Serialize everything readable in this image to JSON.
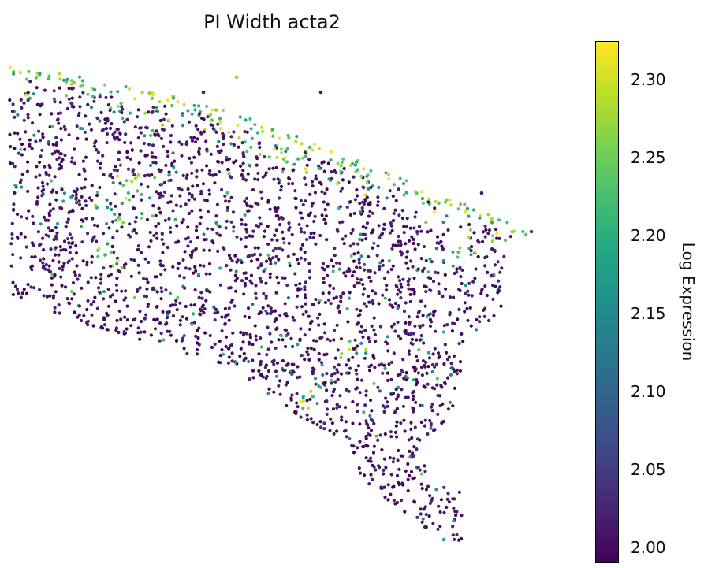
{
  "chart_data": {
    "type": "scatter",
    "title": "PI Width acta2",
    "colorbar": {
      "label": "Log Expression",
      "colormap": "viridis",
      "range": [
        1.99,
        2.325
      ],
      "ticks": [
        2.0,
        2.05,
        2.1,
        2.15,
        2.2,
        2.25,
        2.3
      ],
      "tick_labels": [
        "2.00",
        "2.05",
        "2.10",
        "2.15",
        "2.20",
        "2.25",
        "2.30"
      ]
    },
    "axes_visible": false,
    "grid": false,
    "high_expression_regions": [
      "upper edge band",
      "left-center cluster",
      "right tip cluster"
    ]
  },
  "colors": {
    "low": "#440154",
    "mid": "#21918c",
    "high": "#fde725"
  }
}
